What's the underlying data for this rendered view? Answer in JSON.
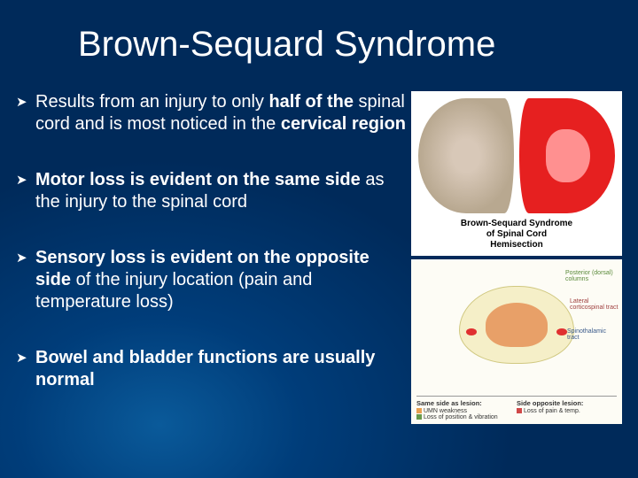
{
  "title": "Brown-Sequard Syndrome",
  "bullets": [
    {
      "pre": "Results from an injury to only ",
      "b1": "half of the",
      "mid": " spinal cord and is most noticed in the ",
      "b2": "cervical region",
      "post": ""
    },
    {
      "pre": "",
      "b1": "Motor loss is evident on the same side",
      "mid": " as the injury to the spinal cord",
      "b2": "",
      "post": ""
    },
    {
      "pre": "",
      "b1": "Sensory loss is evident on the opposite side",
      "mid": " of the injury location (pain and temperature loss)",
      "b2": "",
      "post": ""
    },
    {
      "pre": "",
      "b1": "Bowel and bladder functions are usually normal",
      "mid": "",
      "b2": "",
      "post": ""
    }
  ],
  "image_top": {
    "caption_l1": "Brown-Sequard Syndrome",
    "caption_l2": "of Spinal Cord",
    "caption_l3": "Hemisection",
    "left_color": "#d8c8b8",
    "right_color": "#e62020"
  },
  "image_bottom": {
    "label_tr": "Posterior (dorsal) columns",
    "label_r": "Lateral corticospinal tract",
    "label_br": "Spinothalamic tract",
    "legend": {
      "left_head": "Same side as lesion:",
      "left_a": "UMN weakness",
      "left_b": "Loss of position & vibration",
      "right_head": "Side opposite lesion:",
      "right_a": "Loss of pain & temp.",
      "colors": {
        "umn": "#e8a050",
        "pos": "#6a9a4a",
        "pain": "#d04848"
      }
    },
    "bg": "#fdfcf5",
    "anat_fill": "#f5efc8",
    "anat_inner": "#e8a068"
  },
  "style": {
    "bg_gradient_inner": "#0a5a9a",
    "bg_gradient_outer": "#002a5a",
    "text_color": "#ffffff",
    "title_fontsize": 40,
    "bullet_fontsize": 20,
    "arrow_glyph": "➤"
  }
}
